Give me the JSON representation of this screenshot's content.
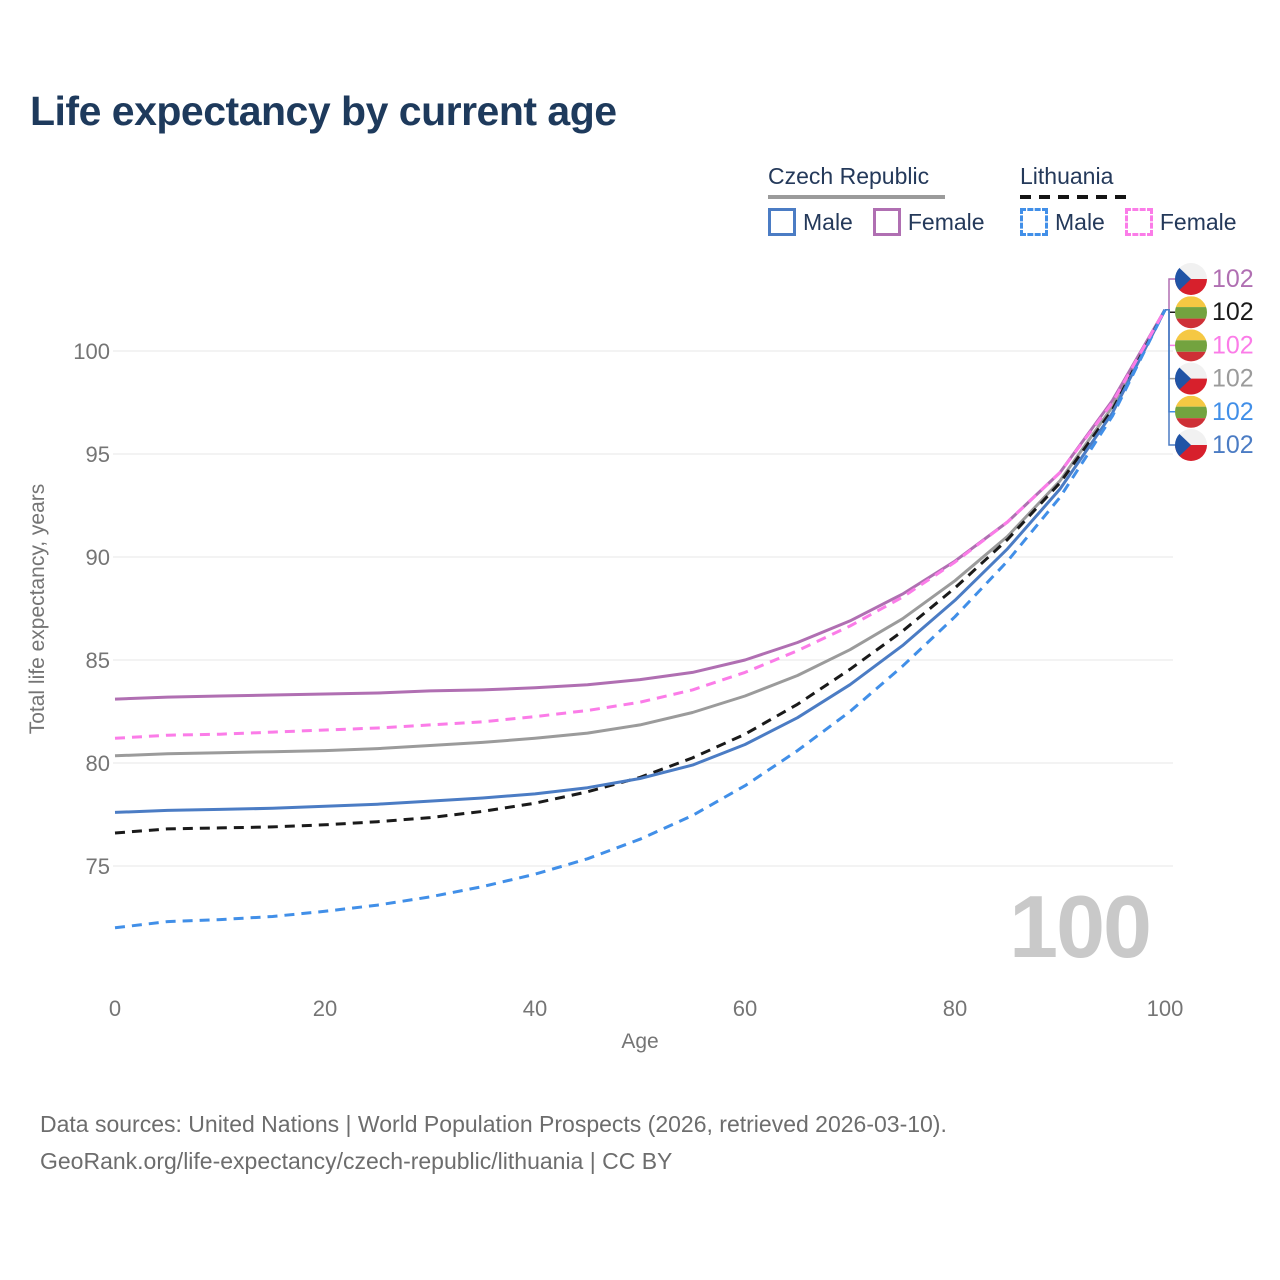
{
  "page": {
    "title": "Life expectancy by current age",
    "footer_line1": "Data sources: United Nations | World Population Prospects (2026, retrieved 2026-03-10).",
    "footer_line2": "GeoRank.org/life-expectancy/czech-republic/lithuania | CC BY"
  },
  "legend": {
    "czech": {
      "title": "Czech Republic",
      "male": "Male",
      "female": "Female"
    },
    "lithuania": {
      "title": "Lithuania",
      "male": "Male",
      "female": "Female"
    }
  },
  "colors": {
    "title_navy": "#1e3a5c",
    "axis_gray": "#757575",
    "grid_gray": "#ececec",
    "watermark_gray": "#c9c9c9",
    "czech_male_blue": "#4b7cc4",
    "czech_female_purple": "#b06fb2",
    "czech_total_gray": "#9b9b9b",
    "lithuania_male_blue": "#418fe8",
    "lithuania_female_pink": "#fb7ce8",
    "lithuania_total_black": "#1a1a1a"
  },
  "chart_data": {
    "type": "line",
    "title": "Life expectancy by current age",
    "xlabel": "Age",
    "ylabel": "Total life expectancy, years",
    "xticks": [
      0,
      20,
      40,
      60,
      80,
      100
    ],
    "yticks": [
      75,
      80,
      85,
      90,
      95,
      100
    ],
    "xlim": [
      0,
      100
    ],
    "ylim": [
      71.5,
      103
    ],
    "grid": "horizontal",
    "legend_position": "top-right",
    "watermark_age_counter": "100",
    "x": [
      0,
      5,
      10,
      15,
      20,
      25,
      30,
      35,
      40,
      45,
      50,
      55,
      60,
      65,
      70,
      75,
      80,
      85,
      90,
      95,
      100
    ],
    "series": [
      {
        "name": "Czech Republic Female",
        "country": "Czech Republic",
        "sex": "Female",
        "flag": "cz",
        "dash": "solid",
        "color": "#b06fb2",
        "end_label": "102",
        "values": [
          83.1,
          83.2,
          83.25,
          83.3,
          83.35,
          83.4,
          83.5,
          83.55,
          83.65,
          83.8,
          84.05,
          84.4,
          85.0,
          85.85,
          86.9,
          88.2,
          89.8,
          91.7,
          94.1,
          97.6,
          102
        ]
      },
      {
        "name": "Lithuania Total",
        "country": "Lithuania",
        "sex": "Both",
        "flag": "lt",
        "dash": "dashed",
        "color": "#1a1a1a",
        "end_label": "102",
        "values": [
          76.6,
          76.8,
          76.85,
          76.9,
          77.0,
          77.15,
          77.35,
          77.65,
          78.05,
          78.6,
          79.3,
          80.25,
          81.4,
          82.85,
          84.55,
          86.4,
          88.5,
          90.85,
          93.6,
          97.15,
          102
        ]
      },
      {
        "name": "Lithuania Female",
        "country": "Lithuania",
        "sex": "Female",
        "flag": "lt",
        "dash": "dashed",
        "color": "#fb7ce8",
        "end_label": "102",
        "values": [
          81.2,
          81.35,
          81.4,
          81.5,
          81.6,
          81.7,
          81.85,
          82.0,
          82.25,
          82.55,
          82.95,
          83.55,
          84.4,
          85.45,
          86.65,
          88.05,
          89.75,
          91.7,
          94.1,
          97.5,
          102
        ]
      },
      {
        "name": "Czech Republic Total",
        "country": "Czech Republic",
        "sex": "Both",
        "flag": "cz",
        "dash": "solid",
        "color": "#9b9b9b",
        "end_label": "102",
        "values": [
          80.35,
          80.45,
          80.5,
          80.55,
          80.6,
          80.7,
          80.85,
          81.0,
          81.2,
          81.45,
          81.85,
          82.45,
          83.25,
          84.25,
          85.5,
          87.0,
          88.85,
          91.0,
          93.7,
          97.3,
          102
        ]
      },
      {
        "name": "Lithuania Male",
        "country": "Lithuania",
        "sex": "Male",
        "flag": "lt",
        "dash": "dashed",
        "color": "#418fe8",
        "end_label": "102",
        "values": [
          72.0,
          72.3,
          72.4,
          72.55,
          72.8,
          73.1,
          73.5,
          74.0,
          74.6,
          75.35,
          76.3,
          77.45,
          78.9,
          80.6,
          82.5,
          84.7,
          87.1,
          89.8,
          92.9,
          96.85,
          102
        ]
      },
      {
        "name": "Czech Republic Male",
        "country": "Czech Republic",
        "sex": "Male",
        "flag": "cz",
        "dash": "solid",
        "color": "#4b7cc4",
        "end_label": "102",
        "values": [
          77.6,
          77.7,
          77.75,
          77.8,
          77.9,
          78.0,
          78.15,
          78.3,
          78.5,
          78.8,
          79.25,
          79.9,
          80.9,
          82.2,
          83.8,
          85.7,
          87.9,
          90.4,
          93.3,
          97.0,
          102
        ]
      }
    ]
  }
}
